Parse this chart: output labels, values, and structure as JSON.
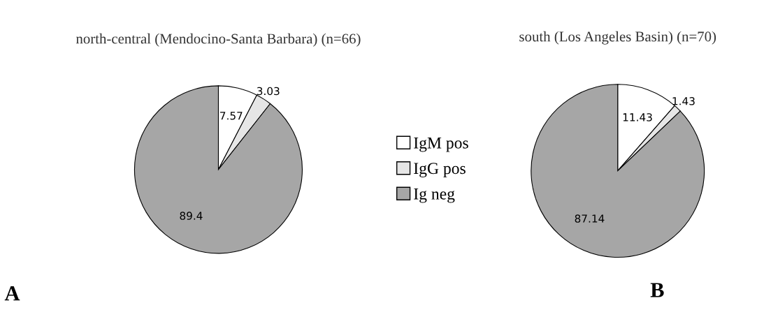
{
  "chart_data": [
    {
      "type": "pie",
      "title": "north-central (Mendocino-Santa Barbara) (n=66)",
      "categories": [
        "IgM pos",
        "IgG pos",
        "Ig neg"
      ],
      "values": [
        7.57,
        3.03,
        89.4
      ],
      "colors": [
        "#ffffff",
        "#e6e6e6",
        "#a6a6a6"
      ],
      "data_labels": true,
      "legend": "right",
      "annotations": [
        "A"
      ]
    },
    {
      "type": "pie",
      "title": "south (Los Angeles Basin) (n=70)",
      "categories": [
        null,
        null,
        null
      ],
      "values": [
        11.43,
        1.43,
        87.14
      ],
      "colors": [
        "#ffffff",
        "#e6e6e6",
        "#a6a6a6"
      ],
      "data_labels": true,
      "annotations": [
        "B"
      ]
    }
  ]
}
